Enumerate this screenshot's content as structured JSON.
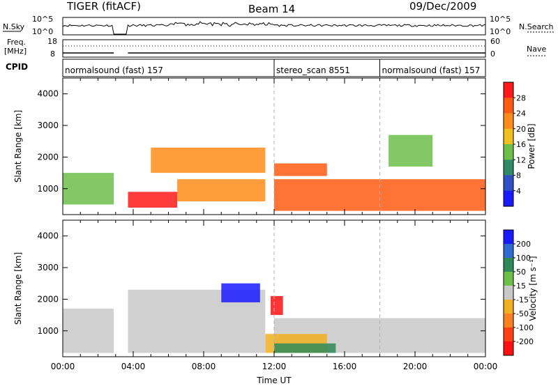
{
  "header": {
    "title": "TIGER (fitACF)",
    "beam": "Beam 14",
    "date": "09/Dec/2009"
  },
  "top_strip": {
    "nsky_label": "N.Sky",
    "nsearch_label": "N.Search",
    "left_ticks": [
      "10^5",
      "10^0"
    ],
    "right_ticks": [
      "10^5",
      "10^0"
    ],
    "freq_label_1": "Freq.",
    "freq_label_2": "[MHz]",
    "freq_ticks": [
      "18",
      "8"
    ],
    "nave_label": "Nave",
    "nave_ticks": [
      "60",
      "0"
    ],
    "cpid_label": "CPID",
    "cpid_segments": [
      {
        "name": "normalsound (fast) 157",
        "start_hour": 0
      },
      {
        "name": "stereo_scan 8551",
        "start_hour": 12
      },
      {
        "name": "normalsound (fast) 157",
        "start_hour": 18
      }
    ]
  },
  "chart_data": [
    {
      "type": "heatmap",
      "name": "power",
      "xlabel": "",
      "ylabel": "Slant Range [km]",
      "xlim": [
        0,
        24
      ],
      "ylim": [
        180,
        4500
      ],
      "y_ticks": [
        "1000",
        "2000",
        "3000",
        "4000"
      ],
      "colorbar_label": "Power [dB]",
      "colorbar_ticks": [
        "4",
        "8",
        "12",
        "16",
        "20",
        "24",
        "28"
      ],
      "colorbar_colors": [
        "#1a1aff",
        "#3050c8",
        "#2f8a6a",
        "#6cc04a",
        "#f0c020",
        "#ff8c1a",
        "#ff5a10",
        "#ff1a1a"
      ],
      "data_gaps_hours": [
        [
          2.9,
          3.7
        ]
      ],
      "echo_regions": [
        {
          "t0": 0.0,
          "t1": 2.9,
          "r0": 500,
          "r1": 1500,
          "value_db": 14
        },
        {
          "t0": 3.7,
          "t1": 6.5,
          "r0": 400,
          "r1": 900,
          "value_db": 28
        },
        {
          "t0": 5.0,
          "t1": 11.5,
          "r0": 1500,
          "r1": 2300,
          "value_db": 22
        },
        {
          "t0": 6.5,
          "t1": 11.5,
          "r0": 600,
          "r1": 1300,
          "value_db": 20
        },
        {
          "t0": 12.0,
          "t1": 24.0,
          "r0": 300,
          "r1": 1300,
          "value_db": 26
        },
        {
          "t0": 12.0,
          "t1": 15.0,
          "r0": 1400,
          "r1": 1800,
          "value_db": 24
        },
        {
          "t0": 18.5,
          "t1": 21.0,
          "r0": 1700,
          "r1": 2700,
          "value_db": 12
        }
      ]
    },
    {
      "type": "heatmap",
      "name": "velocity",
      "xlabel": "Time UT",
      "ylabel": "Slant Range [km]",
      "xlim": [
        0,
        24
      ],
      "ylim": [
        180,
        4500
      ],
      "x_ticks": [
        "00:00",
        "04:00",
        "08:00",
        "12:00",
        "16:00",
        "20:00",
        "00:00"
      ],
      "y_ticks": [
        "1000",
        "2000",
        "3000",
        "4000"
      ],
      "colorbar_label": "Velocity [m s⁻¹]",
      "colorbar_ticks": [
        "200",
        "100",
        "50",
        "15",
        "-15",
        "-50",
        "-100",
        "-200"
      ],
      "colorbar_colors": [
        "#1a1aff",
        "#2f6ad0",
        "#2f8a5a",
        "#6cc04a",
        "#c8c8c8",
        "#f0b020",
        "#ff8020",
        "#ff4010",
        "#ff1010"
      ],
      "data_gaps_hours": [
        [
          2.9,
          3.7
        ]
      ],
      "echo_regions": [
        {
          "t0": 0.0,
          "t1": 2.9,
          "r0": 300,
          "r1": 1700,
          "value_ms": 0
        },
        {
          "t0": 3.7,
          "t1": 11.5,
          "r0": 300,
          "r1": 2300,
          "value_ms": 0
        },
        {
          "t0": 9.0,
          "t1": 11.2,
          "r0": 1900,
          "r1": 2500,
          "value_ms": 180
        },
        {
          "t0": 12.0,
          "t1": 24.0,
          "r0": 300,
          "r1": 1400,
          "value_ms": 0
        },
        {
          "t0": 11.5,
          "t1": 15.0,
          "r0": 300,
          "r1": 900,
          "value_ms": -40
        },
        {
          "t0": 12.0,
          "t1": 15.5,
          "r0": 300,
          "r1": 600,
          "value_ms": 60
        },
        {
          "t0": 11.8,
          "t1": 12.5,
          "r0": 1500,
          "r1": 2100,
          "value_ms": -180
        }
      ]
    }
  ]
}
